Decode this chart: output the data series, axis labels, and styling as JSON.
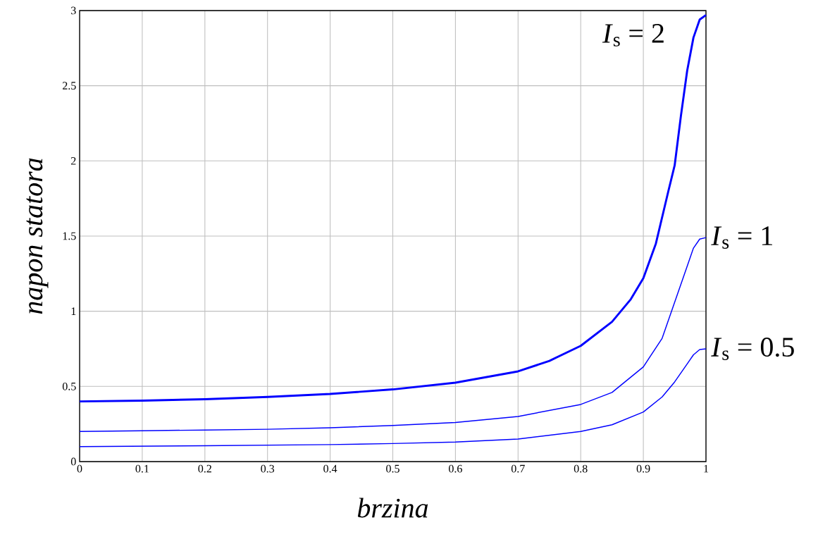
{
  "chart_data": {
    "type": "line",
    "xlabel": "brzina",
    "ylabel": "napon statora",
    "xlim": [
      0,
      1
    ],
    "ylim": [
      0,
      3
    ],
    "xticks": [
      0,
      0.1,
      0.2,
      0.3,
      0.4,
      0.5,
      0.6,
      0.7,
      0.8,
      0.9,
      1
    ],
    "yticks": [
      0,
      0.5,
      1,
      1.5,
      2,
      2.5,
      3
    ],
    "grid": true,
    "marker": "none",
    "line_style": "solid",
    "series": [
      {
        "name": "*I*$_{s}$ = 2",
        "color": "#0000ff",
        "x": [
          0,
          0.1,
          0.2,
          0.3,
          0.4,
          0.5,
          0.6,
          0.7,
          0.75,
          0.8,
          0.85,
          0.88,
          0.9,
          0.92,
          0.94,
          0.95,
          0.96,
          0.97,
          0.98,
          0.99,
          1.0
        ],
        "values": [
          0.4,
          0.405,
          0.415,
          0.43,
          0.45,
          0.48,
          0.525,
          0.6,
          0.67,
          0.77,
          0.93,
          1.08,
          1.22,
          1.45,
          1.8,
          1.97,
          2.3,
          2.6,
          2.82,
          2.94,
          2.97
        ]
      },
      {
        "name": "*I*$_{s}$ = 1",
        "color": "#0000ff",
        "x": [
          0,
          0.1,
          0.2,
          0.3,
          0.4,
          0.5,
          0.6,
          0.7,
          0.8,
          0.85,
          0.9,
          0.93,
          0.95,
          0.97,
          0.98,
          0.99,
          1.0
        ],
        "values": [
          0.2,
          0.205,
          0.21,
          0.215,
          0.225,
          0.24,
          0.26,
          0.3,
          0.38,
          0.46,
          0.63,
          0.82,
          1.06,
          1.3,
          1.42,
          1.48,
          1.49
        ]
      },
      {
        "name": "*I*$_{s}$ = 0.5",
        "color": "#0000ff",
        "x": [
          0,
          0.2,
          0.4,
          0.5,
          0.6,
          0.7,
          0.8,
          0.85,
          0.9,
          0.93,
          0.95,
          0.97,
          0.98,
          0.99,
          1.0
        ],
        "values": [
          0.1,
          0.105,
          0.113,
          0.12,
          0.13,
          0.15,
          0.2,
          0.245,
          0.33,
          0.43,
          0.53,
          0.65,
          0.71,
          0.745,
          0.75
        ]
      }
    ]
  }
}
